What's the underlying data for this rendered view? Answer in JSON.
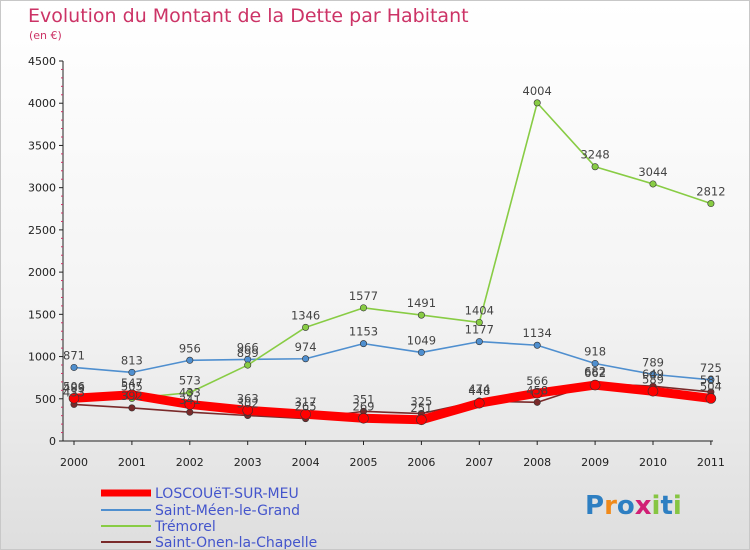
{
  "chart_data": {
    "type": "line",
    "title": "Evolution du Montant de la Dette par Habitant",
    "subtitle": "(en €)",
    "xlabel": "",
    "ylabel": "",
    "categories": [
      "2000",
      "2001",
      "2002",
      "2003",
      "2004",
      "2005",
      "2006",
      "2007",
      "2008",
      "2009",
      "2010",
      "2011"
    ],
    "ylim": [
      0,
      4500
    ],
    "yticks": [
      0,
      500,
      1000,
      1500,
      2000,
      2500,
      3000,
      3500,
      4000,
      4500
    ],
    "grid": false,
    "legend_position": "bottom-left",
    "series": [
      {
        "name": "LOSCOUëT-SUR-MEU",
        "color": "#ff0000",
        "values": [
          506,
          547,
          433,
          363,
          317,
          269,
          251,
          448,
          566,
          662,
          589,
          504
        ],
        "labels": [
          "506",
          "547",
          "433",
          "363",
          "317",
          "269",
          "251",
          "448",
          "566",
          "662",
          "589",
          "504"
        ]
      },
      {
        "name": "Saint-Méen-le-Grand",
        "color": "#4f8fcf",
        "values": [
          871,
          813,
          956,
          966,
          974,
          1153,
          1049,
          1177,
          1134,
          918,
          789,
          725
        ],
        "labels": [
          "871",
          "813",
          "956",
          "966",
          "974",
          "1153",
          "1049",
          "1177",
          "1134",
          "918",
          "789",
          "725"
        ]
      },
      {
        "name": "Trémorel",
        "color": "#88cc44",
        "values": [
          483,
          505,
          573,
          899,
          1346,
          1577,
          1491,
          1404,
          4004,
          3248,
          3044,
          2812
        ],
        "labels": [
          "483",
          "505",
          "573",
          "899",
          "1346",
          "1577",
          "1491",
          "1404",
          "4004",
          "3248",
          "3044",
          "2812"
        ]
      },
      {
        "name": "Saint-Onen-la-Chapelle",
        "color": "#7a2a2a",
        "values": [
          433,
          392,
          341,
          302,
          265,
          351,
          325,
          474,
          458,
          682,
          649,
          581
        ],
        "labels": [
          "433",
          "392",
          "341",
          "302",
          "265",
          "351",
          "325",
          "474",
          "458",
          "682",
          "649",
          "581"
        ]
      }
    ]
  },
  "branding": {
    "logo_text": "Proxiti"
  }
}
